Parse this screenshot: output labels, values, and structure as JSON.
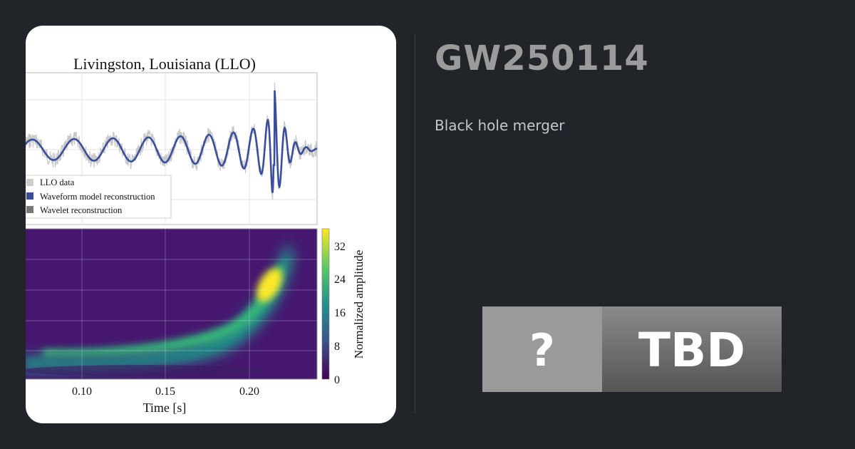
{
  "card": {
    "title": "GW250114",
    "subtitle": "Black hole merger",
    "badge": {
      "icon": "?",
      "label": "TBD"
    }
  },
  "figure": {
    "title": "Livingston, Louisiana (LLO)",
    "legend": [
      "LLO data",
      "Waveform model reconstruction",
      "Wavelet reconstruction"
    ],
    "xticks": [
      "0.10",
      "0.15",
      "0.20"
    ],
    "xlabel": "Time [s]",
    "colorbar": {
      "label": "Normalized amplitude",
      "ticks": [
        "32",
        "24",
        "16",
        "8",
        "0"
      ]
    }
  }
}
